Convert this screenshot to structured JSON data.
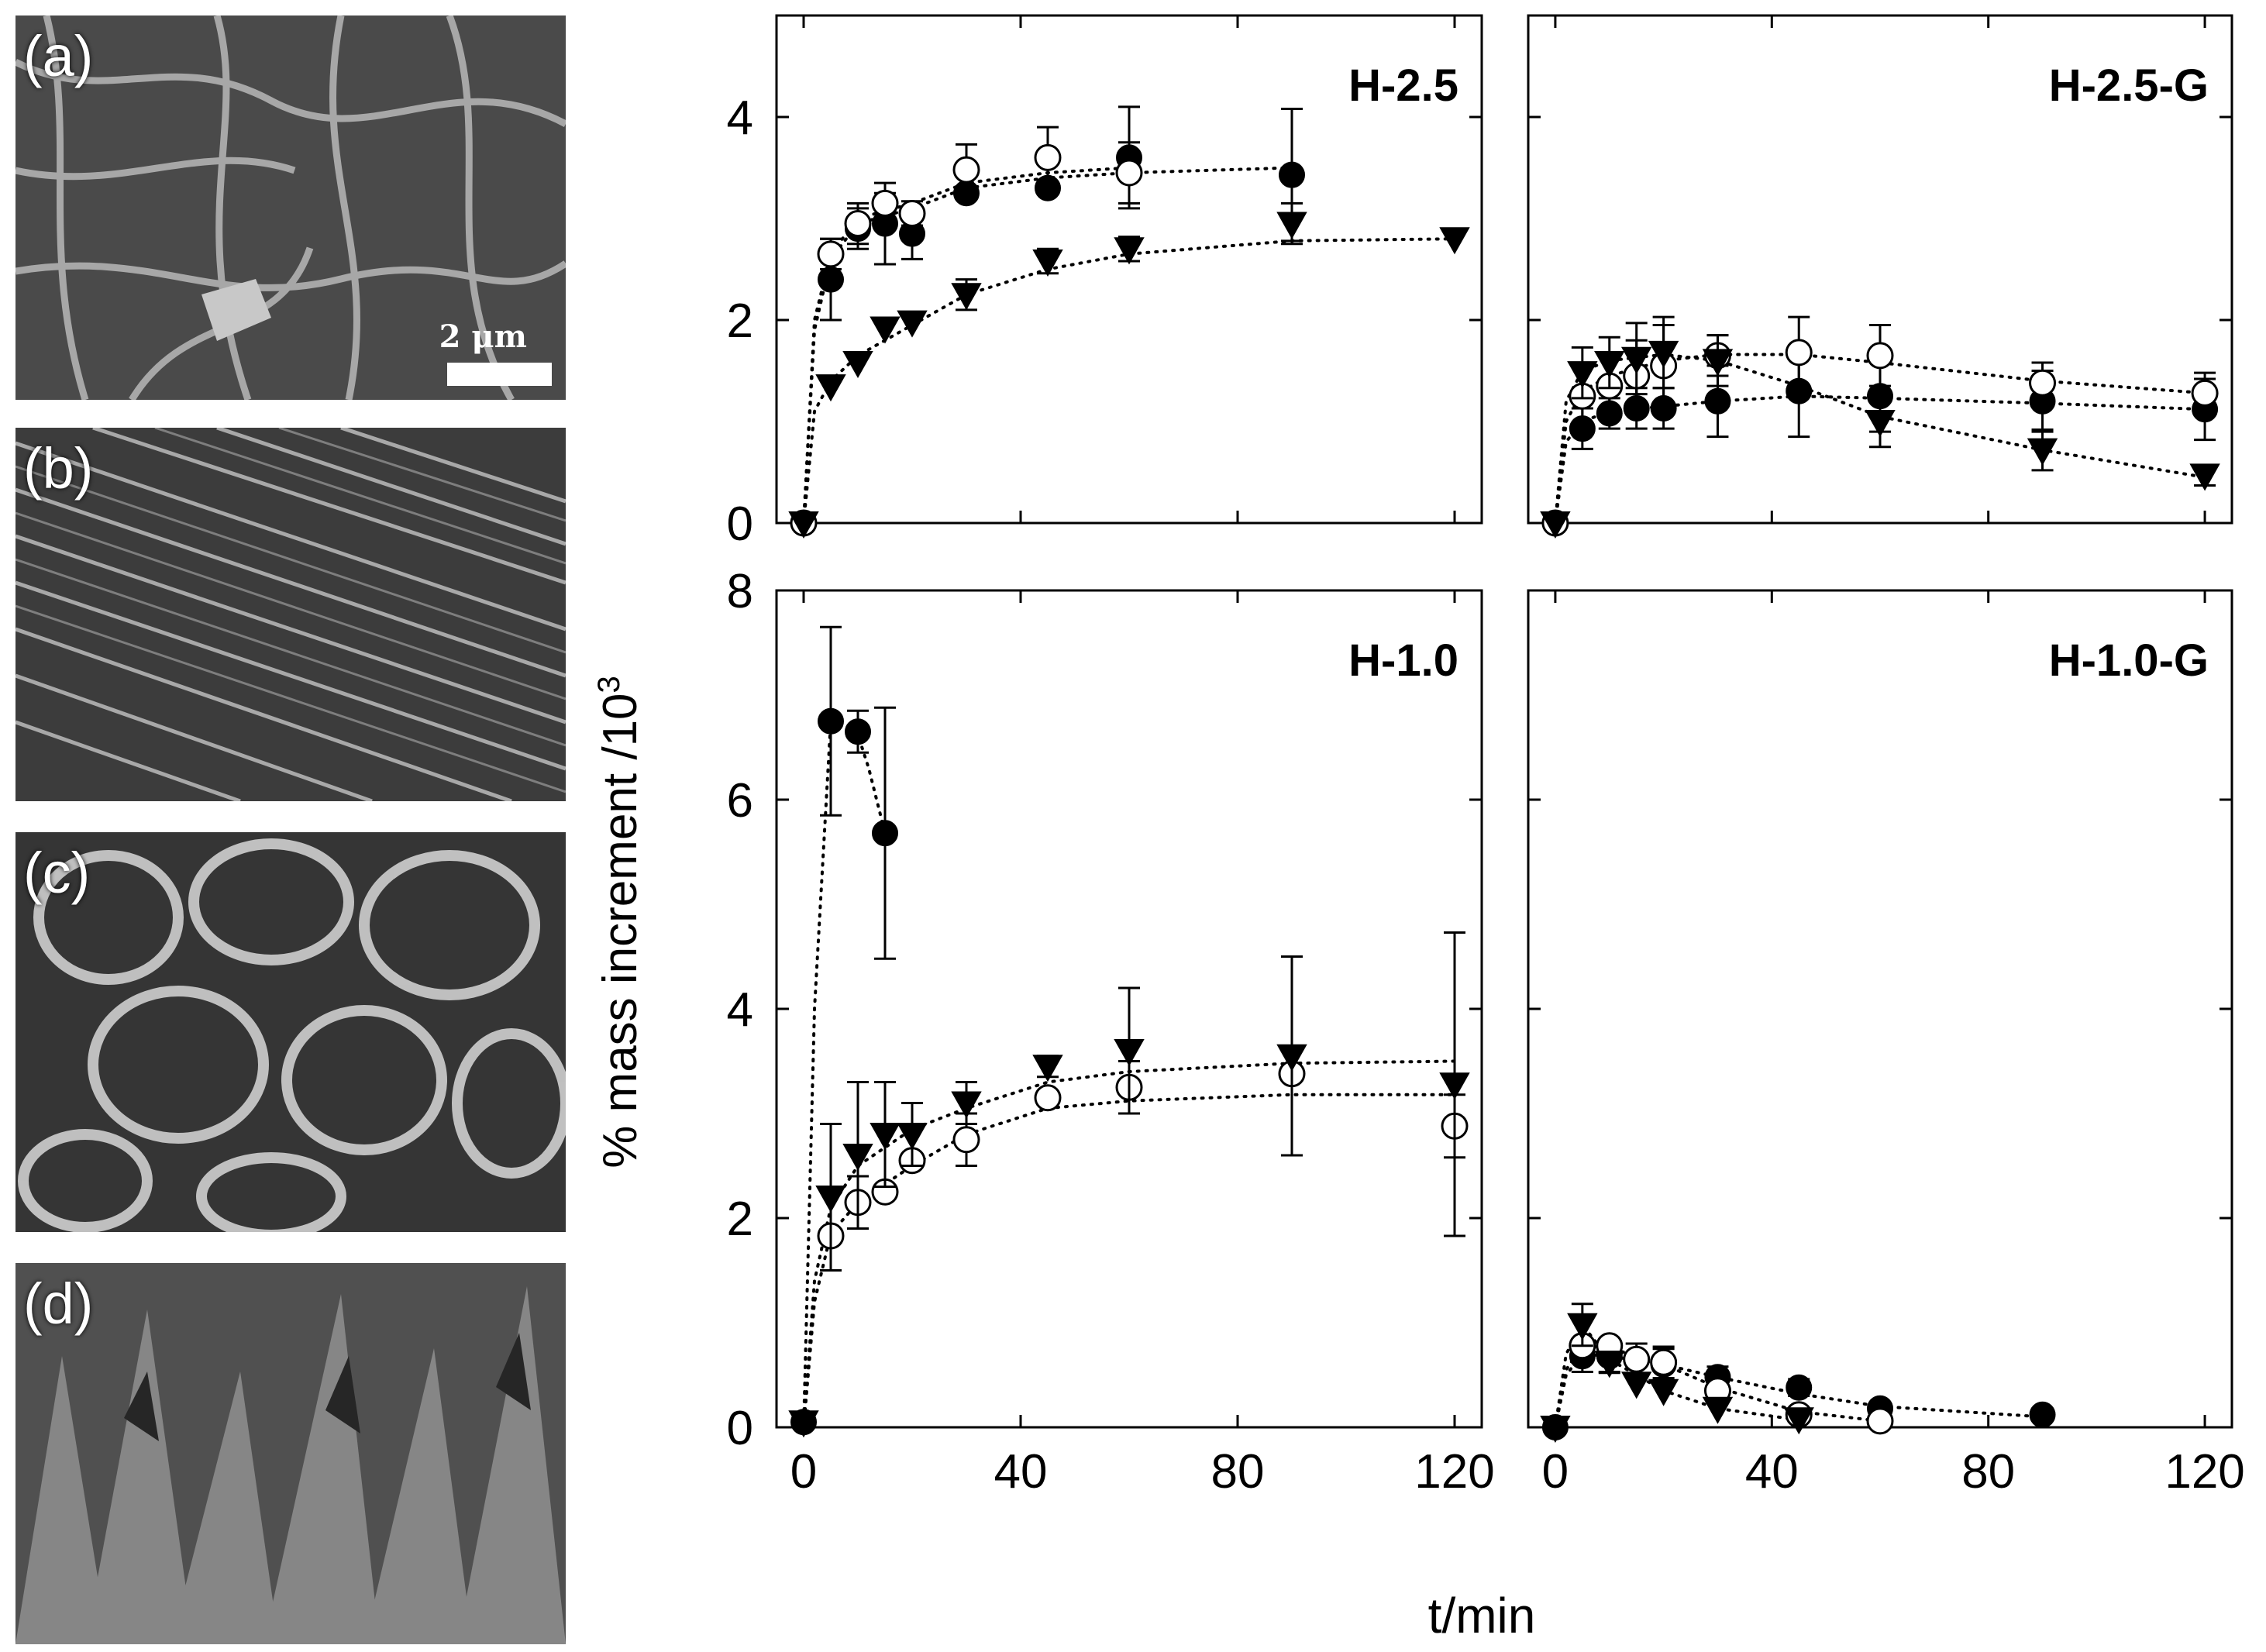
{
  "micrographs": [
    {
      "label": "(a)",
      "scale_text": "2 μm"
    },
    {
      "label": "(b)"
    },
    {
      "label": "(c)"
    },
    {
      "label": "(d)"
    }
  ],
  "axes": {
    "ylabel": "% mass increment /10",
    "ylabel_exp": "3",
    "xlabel": "t/min"
  },
  "colors": {
    "ink": "#000000",
    "fill_open": "#ffffff"
  },
  "chart_data": [
    {
      "type": "scatter",
      "title": "H-2.5",
      "ylim": [
        0,
        5
      ],
      "xlim": [
        -5,
        125
      ],
      "yticks": [
        0,
        2,
        4
      ],
      "xticks": [
        0,
        40,
        80,
        120
      ],
      "show_xticklabels": false,
      "series": [
        {
          "name": "filled circles",
          "marker": "circle-filled",
          "x": [
            0,
            5,
            10,
            15,
            20,
            30,
            45,
            60,
            90
          ],
          "y": [
            0,
            2.4,
            2.9,
            2.95,
            2.85,
            3.25,
            3.3,
            3.6,
            3.43
          ],
          "err": [
            0,
            0.4,
            0.2,
            0.4,
            0.25,
            0,
            0,
            0.5,
            0.65
          ]
        },
        {
          "name": "open circles",
          "marker": "circle-open",
          "x": [
            0,
            5,
            10,
            15,
            20,
            30,
            45,
            60
          ],
          "y": [
            0,
            2.65,
            2.95,
            3.15,
            3.05,
            3.48,
            3.6,
            3.45
          ],
          "err": [
            0,
            0.15,
            0.2,
            0.1,
            0.12,
            0.25,
            0.3,
            0.3
          ]
        },
        {
          "name": "triangles",
          "marker": "triangle-down",
          "x": [
            0,
            5,
            10,
            15,
            20,
            30,
            45,
            60,
            90,
            120
          ],
          "y": [
            0,
            1.35,
            1.58,
            1.92,
            1.98,
            2.25,
            2.58,
            2.7,
            2.95,
            2.8
          ],
          "err": [
            0,
            0,
            0,
            0,
            0,
            0.15,
            0.12,
            0.12,
            0.2,
            0
          ]
        }
      ],
      "fit_lines": [
        {
          "x": [
            0,
            2,
            5,
            10,
            20,
            30,
            45,
            60,
            90
          ],
          "y": [
            0,
            1.9,
            2.6,
            2.95,
            3.1,
            3.3,
            3.4,
            3.45,
            3.5
          ]
        },
        {
          "x": [
            0,
            2,
            5,
            10,
            20,
            30,
            45,
            60
          ],
          "y": [
            0,
            2.0,
            2.65,
            3.0,
            3.15,
            3.35,
            3.45,
            3.5
          ]
        },
        {
          "x": [
            0,
            2,
            5,
            10,
            20,
            30,
            45,
            60,
            90,
            120
          ],
          "y": [
            0,
            1.1,
            1.4,
            1.65,
            1.95,
            2.25,
            2.5,
            2.65,
            2.78,
            2.8
          ]
        }
      ]
    },
    {
      "type": "scatter",
      "title": "H-2.5-G",
      "ylim": [
        0,
        5
      ],
      "xlim": [
        -5,
        125
      ],
      "yticks": [
        0,
        2,
        4
      ],
      "xticks": [
        0,
        40,
        80,
        120
      ],
      "show_xticklabels": false,
      "series": [
        {
          "name": "filled circles",
          "marker": "circle-filled",
          "x": [
            0,
            5,
            10,
            15,
            20,
            30,
            45,
            60,
            90,
            120
          ],
          "y": [
            0,
            0.93,
            1.08,
            1.13,
            1.13,
            1.2,
            1.3,
            1.25,
            1.2,
            1.12
          ],
          "err": [
            0,
            0.2,
            0.15,
            0.2,
            0.2,
            0.35,
            0.45,
            0.35,
            0.3,
            0.3
          ]
        },
        {
          "name": "open circles",
          "marker": "circle-open",
          "x": [
            0,
            5,
            10,
            15,
            20,
            30,
            45,
            60,
            90,
            120
          ],
          "y": [
            0,
            1.25,
            1.35,
            1.45,
            1.55,
            1.65,
            1.68,
            1.65,
            1.38,
            1.28
          ],
          "err": [
            0,
            0.3,
            0.3,
            0.35,
            0.4,
            0.2,
            0.35,
            0.3,
            0.2,
            0.2
          ]
        },
        {
          "name": "triangles",
          "marker": "triangle-down",
          "x": [
            0,
            5,
            10,
            15,
            20,
            30,
            60,
            90,
            120
          ],
          "y": [
            0,
            1.48,
            1.58,
            1.62,
            1.68,
            1.6,
            1.0,
            0.72,
            0.47
          ],
          "err": [
            0,
            0.25,
            0.25,
            0.35,
            0.35,
            0.25,
            0.25,
            0.2,
            0.1
          ]
        }
      ],
      "fit_lines": [
        {
          "x": [
            0,
            2,
            5,
            10,
            20,
            30,
            45,
            60,
            90,
            120
          ],
          "y": [
            0,
            0.8,
            1.0,
            1.1,
            1.15,
            1.2,
            1.25,
            1.23,
            1.18,
            1.12
          ]
        },
        {
          "x": [
            0,
            2,
            5,
            10,
            20,
            30,
            45,
            60,
            90,
            120
          ],
          "y": [
            0,
            1.0,
            1.3,
            1.45,
            1.6,
            1.66,
            1.66,
            1.58,
            1.4,
            1.28
          ]
        },
        {
          "x": [
            0,
            2,
            5,
            10,
            20,
            30,
            45,
            60,
            90,
            120
          ],
          "y": [
            0,
            1.2,
            1.5,
            1.6,
            1.66,
            1.6,
            1.35,
            1.05,
            0.72,
            0.45
          ]
        }
      ]
    },
    {
      "type": "scatter",
      "title": "H-1.0",
      "ylim": [
        0,
        8
      ],
      "xlim": [
        -5,
        125
      ],
      "yticks": [
        0,
        2,
        4,
        6,
        8
      ],
      "xticks": [
        0,
        40,
        80,
        120
      ],
      "show_xticklabels": true,
      "series": [
        {
          "name": "filled circles",
          "marker": "circle-filled",
          "x": [
            0,
            5,
            10,
            15
          ],
          "y": [
            0.05,
            6.75,
            6.65,
            5.68
          ],
          "err": [
            0,
            0.9,
            0.2,
            1.2
          ]
        },
        {
          "name": "open circles",
          "marker": "circle-open",
          "x": [
            5,
            10,
            15,
            20,
            30,
            45,
            60,
            90,
            120
          ],
          "y": [
            1.83,
            2.15,
            2.25,
            2.55,
            2.75,
            3.15,
            3.25,
            3.38,
            2.88
          ],
          "err": [
            0,
            0.25,
            0,
            0,
            0.25,
            0,
            0.25,
            0,
            0.3
          ]
        },
        {
          "name": "triangles",
          "marker": "triangle-down",
          "x": [
            0,
            5,
            10,
            15,
            20,
            30,
            45,
            60,
            90,
            120
          ],
          "y": [
            0.05,
            2.2,
            2.6,
            2.8,
            2.8,
            3.1,
            3.45,
            3.6,
            3.55,
            3.28
          ],
          "err": [
            0,
            0.7,
            0.7,
            0.5,
            0.3,
            0.2,
            0.1,
            0.6,
            0.95,
            1.45
          ]
        }
      ],
      "fit_lines": [
        {
          "x": [
            0,
            2,
            5,
            10,
            12,
            15
          ],
          "y": [
            0,
            4.0,
            6.75,
            6.62,
            6.3,
            5.68
          ]
        },
        {
          "x": [
            0,
            2,
            5,
            10,
            20,
            30,
            45,
            60,
            90,
            120
          ],
          "y": [
            0,
            1.2,
            1.85,
            2.15,
            2.5,
            2.8,
            3.05,
            3.12,
            3.18,
            3.18
          ]
        },
        {
          "x": [
            0,
            2,
            5,
            10,
            20,
            30,
            45,
            60,
            90,
            120
          ],
          "y": [
            0,
            1.4,
            2.1,
            2.5,
            2.85,
            3.05,
            3.3,
            3.4,
            3.48,
            3.5
          ]
        }
      ]
    },
    {
      "type": "scatter",
      "title": "H-1.0-G",
      "ylim": [
        0,
        8
      ],
      "xlim": [
        -5,
        125
      ],
      "yticks": [
        0,
        2,
        4,
        6,
        8
      ],
      "xticks": [
        0,
        40,
        80,
        120
      ],
      "show_xticklabels": true,
      "series": [
        {
          "name": "filled circles",
          "marker": "circle-filled",
          "x": [
            0,
            5,
            10,
            15,
            20,
            30,
            45,
            60,
            90
          ],
          "y": [
            0,
            0.68,
            0.68,
            0.65,
            0.6,
            0.48,
            0.38,
            0.18,
            0.12
          ],
          "err": [
            0,
            0.15,
            0.15,
            0.15,
            0.15,
            0.1,
            0.08,
            0.05,
            0
          ]
        },
        {
          "name": "open circles",
          "marker": "circle-open",
          "x": [
            5,
            10,
            15,
            20,
            30,
            45,
            60
          ],
          "y": [
            0.78,
            0.78,
            0.65,
            0.62,
            0.35,
            0.12,
            0.06
          ],
          "err": [
            0,
            0,
            0,
            0.15,
            0,
            0,
            0
          ]
        },
        {
          "name": "triangles",
          "marker": "triangle-down",
          "x": [
            0,
            5,
            10,
            15,
            20,
            30,
            45
          ],
          "y": [
            0,
            0.98,
            0.62,
            0.42,
            0.35,
            0.18,
            0.08
          ],
          "err": [
            0,
            0.2,
            0.1,
            0,
            0,
            0,
            0
          ]
        }
      ],
      "fit_lines": [
        {
          "x": [
            0,
            2,
            5,
            10,
            20,
            30,
            45,
            60,
            90
          ],
          "y": [
            0,
            0.5,
            0.7,
            0.68,
            0.6,
            0.48,
            0.32,
            0.2,
            0.1
          ]
        },
        {
          "x": [
            0,
            2,
            5,
            10,
            20,
            30,
            45,
            60
          ],
          "y": [
            0,
            0.55,
            0.78,
            0.76,
            0.6,
            0.38,
            0.15,
            0.06
          ]
        },
        {
          "x": [
            0,
            2,
            5,
            10,
            20,
            30,
            45
          ],
          "y": [
            0,
            0.7,
            0.98,
            0.65,
            0.35,
            0.18,
            0.07
          ]
        }
      ]
    }
  ]
}
